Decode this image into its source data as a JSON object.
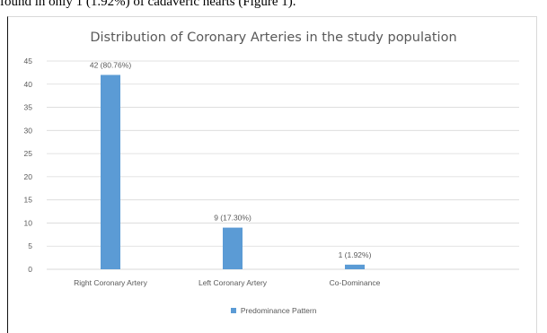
{
  "page": {
    "top_text": "found in only 1 (1.92%) of cadaveric hearts (Figure 1)."
  },
  "colors": {
    "bar": "#5b9bd5",
    "grid": "#d9d9d9",
    "text": "#595959"
  },
  "chart_data": {
    "type": "bar",
    "title": "Distribution of Coronary Arteries in the study population",
    "categories": [
      "Right Coronary Artery",
      "Left Coronary Artery",
      "Co-Dominance"
    ],
    "series": [
      {
        "name": "Predominance Pattern",
        "values": [
          42,
          9,
          1
        ],
        "data_labels": [
          "42 (80.76%)",
          "9 (17.30%)",
          "1 (1.92%)"
        ]
      }
    ],
    "ylim": [
      0,
      45
    ],
    "yticks": [
      0,
      5,
      10,
      15,
      20,
      25,
      30,
      35,
      40,
      45
    ],
    "grid": true,
    "legend_position": "bottom",
    "xlabel": "",
    "ylabel": ""
  }
}
